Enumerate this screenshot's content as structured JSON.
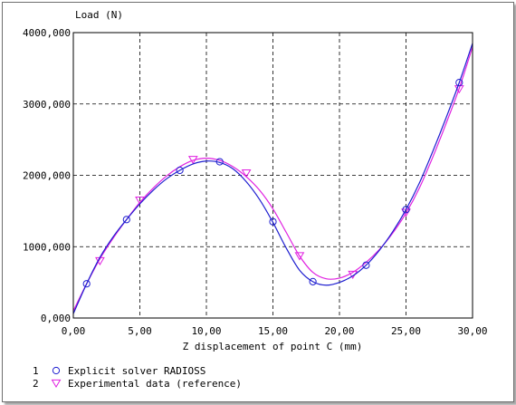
{
  "chart_data": {
    "type": "line",
    "xlabel": "Z displacement of point C (mm)",
    "ylabel": "Load (N)",
    "xlim": [
      0,
      30
    ],
    "ylim": [
      0,
      4000
    ],
    "x_ticks": [
      0,
      5,
      10,
      15,
      20,
      25,
      30
    ],
    "y_ticks": [
      0,
      1000,
      2000,
      3000,
      4000
    ],
    "x_tick_labels": [
      "0,00",
      "5,00",
      "10,00",
      "15,00",
      "20,00",
      "25,00",
      "30,00"
    ],
    "y_tick_labels": [
      "0,000",
      "1000,000",
      "2000,000",
      "3000,000",
      "4000,000"
    ],
    "grid": true,
    "legend_position": "bottom-left",
    "series": [
      {
        "index": "1",
        "name": "Explicit solver RADIOSS",
        "color": "#1f1fd0",
        "marker": "circle",
        "x": [
          0,
          1,
          2,
          3,
          4,
          5,
          6,
          7,
          8,
          9,
          10,
          11,
          12,
          13,
          14,
          15,
          16,
          17,
          18,
          19,
          20,
          21,
          22,
          23,
          24,
          25,
          26,
          27,
          28,
          29,
          30
        ],
        "values": [
          60,
          480,
          850,
          1140,
          1380,
          1600,
          1790,
          1950,
          2070,
          2160,
          2200,
          2180,
          2090,
          1910,
          1660,
          1340,
          980,
          670,
          510,
          460,
          500,
          590,
          740,
          950,
          1210,
          1520,
          1890,
          2330,
          2800,
          3300,
          3850
        ],
        "marker_x": [
          1,
          4,
          8,
          11,
          15,
          18,
          22,
          25,
          29
        ],
        "marker_values": [
          480,
          1380,
          2070,
          2190,
          1350,
          510,
          740,
          1520,
          3300
        ]
      },
      {
        "index": "2",
        "name": "Experimental data (reference)",
        "color": "#e020e0",
        "marker": "triangle-down",
        "x": [
          0,
          1,
          2,
          3,
          4,
          5,
          6,
          7,
          8,
          9,
          10,
          11,
          12,
          13,
          14,
          15,
          16,
          17,
          18,
          19,
          20,
          21,
          22,
          23,
          24,
          25,
          26,
          27,
          28,
          29,
          30
        ],
        "values": [
          100,
          480,
          830,
          1120,
          1380,
          1620,
          1820,
          1990,
          2120,
          2210,
          2240,
          2210,
          2120,
          1980,
          1790,
          1530,
          1200,
          870,
          640,
          550,
          560,
          640,
          780,
          960,
          1190,
          1470,
          1820,
          2250,
          2720,
          3220,
          3800
        ],
        "marker_x": [
          2,
          5,
          9,
          13,
          17,
          21,
          25,
          29
        ],
        "marker_values": [
          800,
          1650,
          2220,
          2030,
          870,
          610,
          1480,
          3210
        ]
      }
    ]
  }
}
